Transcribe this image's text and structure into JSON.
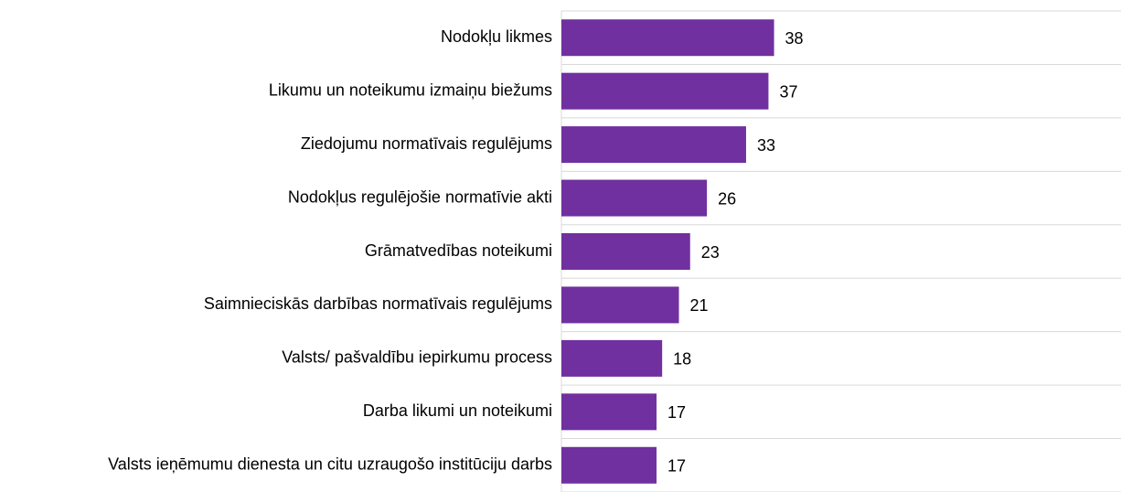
{
  "chart_data": {
    "type": "bar",
    "orientation": "horizontal",
    "categories": [
      "Nodokļu likmes",
      "Likumu un noteikumu izmaiņu biežums",
      "Ziedojumu normatīvais regulējums",
      "Nodokļus regulējošie normatīvie akti",
      "Grāmatvedības noteikumi",
      "Saimnieciskās darbības normatīvais regulējums",
      "Valsts/ pašvaldību iepirkumu process",
      "Darba likumi un noteikumi",
      "Valsts ieņēmumu dienesta un citu uzraugošo institūciju darbs"
    ],
    "values": [
      38,
      37,
      33,
      26,
      23,
      21,
      18,
      17,
      17
    ],
    "color": "#7030a0",
    "xlim": [
      0,
      100
    ],
    "grid": true
  }
}
